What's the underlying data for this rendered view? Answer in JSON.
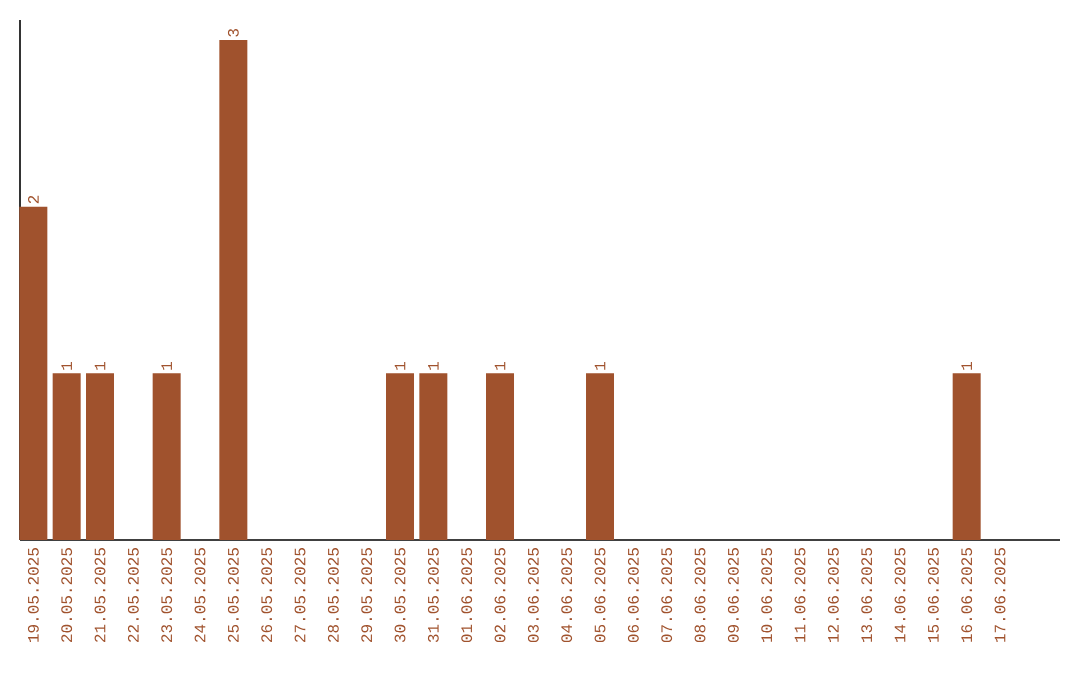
{
  "chart_data": {
    "type": "bar",
    "categories": [
      "19.05.2025",
      "20.05.2025",
      "21.05.2025",
      "22.05.2025",
      "23.05.2025",
      "24.05.2025",
      "25.05.2025",
      "26.05.2025",
      "27.05.2025",
      "28.05.2025",
      "29.05.2025",
      "30.05.2025",
      "31.05.2025",
      "01.06.2025",
      "02.06.2025",
      "03.06.2025",
      "04.06.2025",
      "05.06.2025",
      "06.06.2025",
      "07.06.2025",
      "08.06.2025",
      "09.06.2025",
      "10.06.2025",
      "11.06.2025",
      "12.06.2025",
      "13.06.2025",
      "14.06.2025",
      "15.06.2025",
      "16.06.2025",
      "17.06.2025"
    ],
    "values": [
      2,
      1,
      1,
      0,
      1,
      0,
      3,
      0,
      0,
      0,
      0,
      1,
      1,
      0,
      1,
      0,
      0,
      1,
      0,
      0,
      0,
      0,
      0,
      0,
      0,
      0,
      0,
      0,
      1,
      0
    ],
    "value_labels": [
      "2",
      "1",
      "1",
      null,
      "1",
      null,
      "3",
      null,
      null,
      null,
      null,
      "1",
      "1",
      null,
      "1",
      null,
      null,
      "1",
      null,
      null,
      null,
      null,
      null,
      null,
      null,
      null,
      null,
      null,
      "1",
      null
    ],
    "color": "#a0522d"
  }
}
